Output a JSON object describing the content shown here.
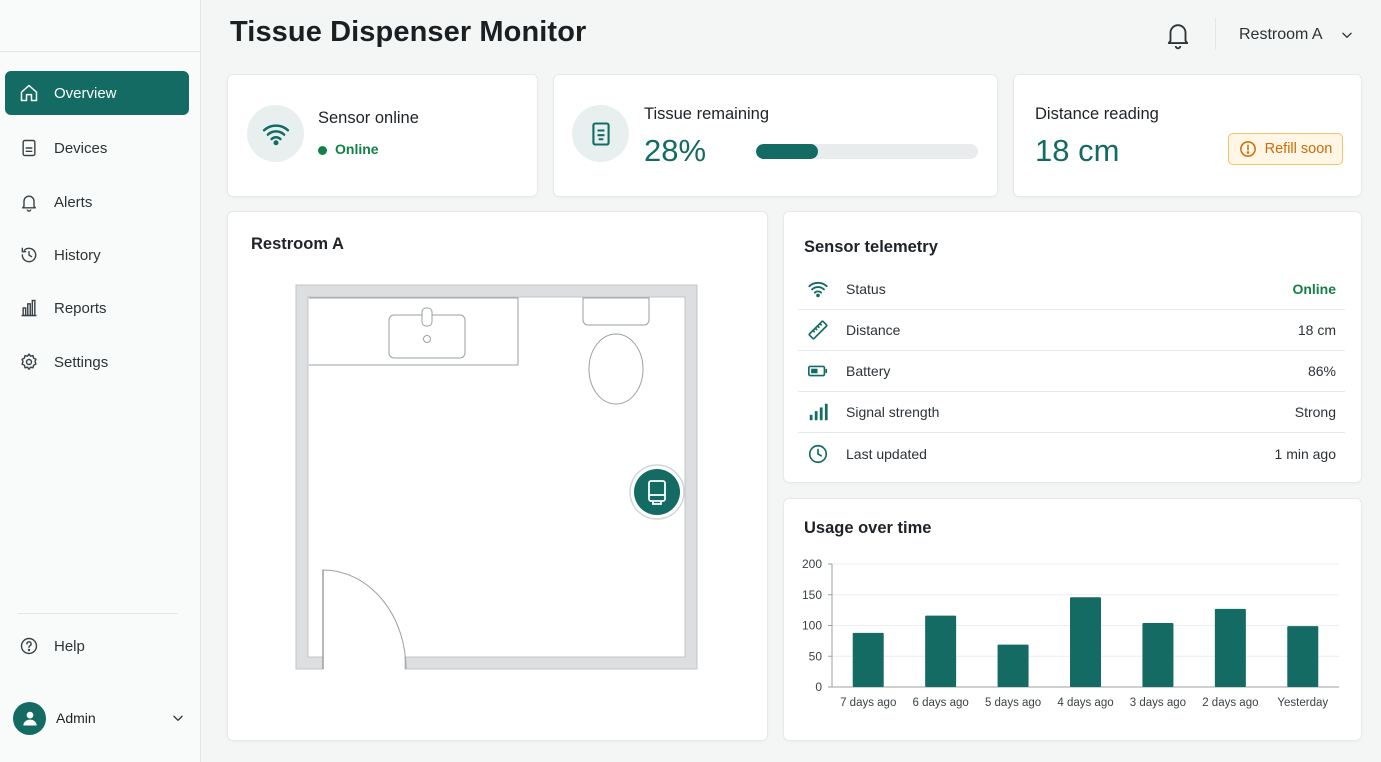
{
  "header": {
    "title": "Tissue Dispenser Monitor",
    "location": "Restroom A"
  },
  "sidebar": {
    "items": [
      {
        "label": "Overview",
        "icon": "home-icon",
        "active": true
      },
      {
        "label": "Devices",
        "icon": "device-icon"
      },
      {
        "label": "Alerts",
        "icon": "bell-icon"
      },
      {
        "label": "History",
        "icon": "history-icon"
      },
      {
        "label": "Reports",
        "icon": "bar-chart-icon"
      },
      {
        "label": "Settings",
        "icon": "gear-icon"
      }
    ],
    "help": "Help",
    "user": "Admin"
  },
  "cards": {
    "sensor": {
      "label": "Sensor online",
      "status": "Online"
    },
    "tissue": {
      "label": "Tissue remaining",
      "value": "28%",
      "progress": 0.28
    },
    "distance": {
      "label": "Distance reading",
      "value": "18 cm",
      "badge": "Refill soon"
    }
  },
  "floorplan": {
    "title": "Restroom A"
  },
  "telemetry": {
    "title": "Sensor telemetry",
    "rows": [
      {
        "label": "Status",
        "value": "Online",
        "icon": "wifi-icon"
      },
      {
        "label": "Distance",
        "value": "18 cm",
        "icon": "ruler-icon"
      },
      {
        "label": "Battery",
        "value": "86%",
        "icon": "battery-icon"
      },
      {
        "label": "Signal strength",
        "value": "Strong",
        "icon": "signal-icon"
      },
      {
        "label": "Last updated",
        "value": "1 min ago",
        "icon": "clock-icon"
      }
    ]
  },
  "usage": {
    "title": "Usage over time"
  },
  "colors": {
    "accent": "#136b63",
    "online": "#138046",
    "warning": "#c96d08"
  },
  "chart_data": {
    "type": "bar",
    "title": "Usage over time",
    "categories": [
      "7 days ago",
      "6 days ago",
      "5 days ago",
      "4 days ago",
      "3 days ago",
      "2 days ago",
      "Yesterday"
    ],
    "values": [
      88,
      116,
      69,
      146,
      104,
      127,
      99
    ],
    "ylim": [
      0,
      200
    ],
    "yticks": [
      0,
      50,
      100,
      150,
      200
    ],
    "grid": true,
    "legend": "none"
  }
}
